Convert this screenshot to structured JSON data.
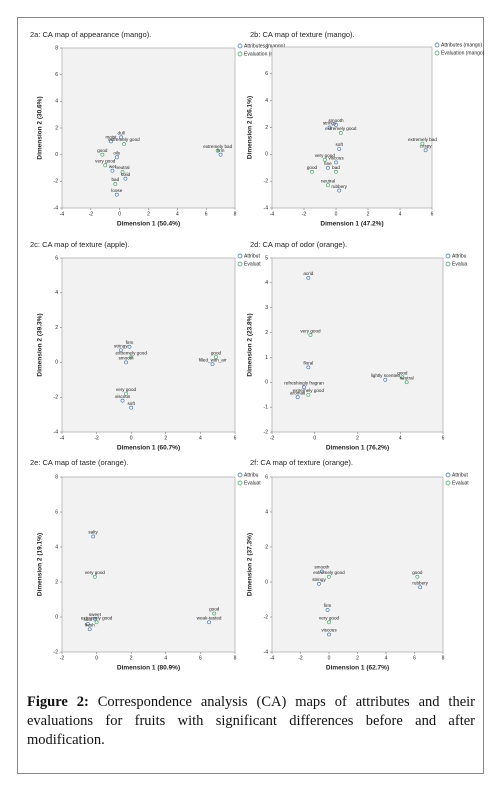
{
  "chart_data": [
    {
      "type": "scatter",
      "title": "2a: CA map of appearance (mango).",
      "xlabel": "Dimension 1 (50.4%)",
      "ylabel": "Dimension 2 (30.6%)",
      "xlim": [
        -4,
        8
      ],
      "xticks": [
        -4,
        -2,
        0,
        2,
        4,
        6,
        8
      ],
      "ylim": [
        -4,
        8
      ],
      "yticks": [
        -4,
        -2,
        0,
        2,
        4,
        6,
        8
      ],
      "series": [
        {
          "name": "Attributes (mango)",
          "color": "#3a6fb0",
          "labels": [
            "dull",
            "moist",
            "oily",
            "wet",
            "solid",
            "loose",
            "firm"
          ],
          "x": [
            0.1,
            -0.6,
            -0.2,
            -0.5,
            0.4,
            -0.2,
            7.0
          ],
          "values": [
            1.3,
            1.0,
            -0.2,
            -1.2,
            -1.8,
            -3.0,
            0.0
          ]
        },
        {
          "name": "Evaluation (mango)",
          "color": "#3aa060",
          "labels": [
            "extremely good",
            "good",
            "very good",
            "neutral",
            "bad",
            "extremely bad"
          ],
          "x": [
            0.3,
            -1.2,
            -1.0,
            0.2,
            -0.3,
            6.8
          ],
          "values": [
            0.8,
            0.0,
            -0.8,
            -1.3,
            -2.2,
            0.3
          ]
        }
      ]
    },
    {
      "type": "scatter",
      "title": "2b: CA map of texture (mango).",
      "xlabel": "Dimension 1 (47.2%)",
      "ylabel": "Dimension 2 (26.1%)",
      "xlim": [
        -4,
        6
      ],
      "xticks": [
        -4,
        -2,
        0,
        2,
        4,
        6
      ],
      "ylim": [
        -4,
        8
      ],
      "yticks": [
        -4,
        -2,
        0,
        2,
        4,
        6,
        8
      ],
      "series": [
        {
          "name": "Attributes (mango)",
          "color": "#3a6fb0",
          "labels": [
            "stringy",
            "smooth",
            "soft",
            "viscous",
            "fine",
            "rubbery",
            "crispy"
          ],
          "x": [
            -0.4,
            0.0,
            0.2,
            0.0,
            -0.5,
            0.2,
            5.6
          ],
          "values": [
            2.0,
            2.2,
            0.4,
            -0.6,
            -1.0,
            -2.7,
            0.3
          ]
        },
        {
          "name": "Evaluation (mango)",
          "color": "#3aa060",
          "labels": [
            "extremely good",
            "very good",
            "good",
            "bad",
            "neutral",
            "extremely bad"
          ],
          "x": [
            0.3,
            -0.7,
            -1.5,
            0.0,
            -0.5,
            5.4
          ],
          "values": [
            1.6,
            -0.4,
            -1.3,
            -1.3,
            -2.3,
            0.8
          ]
        }
      ]
    },
    {
      "type": "scatter",
      "title": "2c: CA map of texture (apple).",
      "xlabel": "Dimension 1 (60.7%)",
      "ylabel": "Dimension 2 (39.3%)",
      "xlim": [
        -4,
        6
      ],
      "xticks": [
        -4,
        -2,
        0,
        2,
        4,
        6
      ],
      "ylim": [
        -4,
        6
      ],
      "yticks": [
        -4,
        -2,
        0,
        2,
        4,
        6
      ],
      "series": [
        {
          "name": "Attribut",
          "color": "#3a6fb0",
          "labels": [
            "firm",
            "stringy",
            "smooth",
            "filled_with_air",
            "viscous",
            "soft"
          ],
          "x": [
            -0.1,
            -0.6,
            -0.3,
            4.7,
            -0.5,
            0.0
          ],
          "values": [
            0.9,
            0.7,
            0.0,
            -0.1,
            -2.2,
            -2.6
          ]
        },
        {
          "name": "Evaluat",
          "color": "#3aa060",
          "labels": [
            "extremely good",
            "good",
            "very good"
          ],
          "x": [
            0.0,
            4.9,
            -0.3
          ],
          "values": [
            0.3,
            0.3,
            -1.8
          ]
        }
      ]
    },
    {
      "type": "scatter",
      "title": "2d: CA map of odor (orange).",
      "xlabel": "Dimension 1 (76.2%)",
      "ylabel": "Dimension 2 (23.8%)",
      "xlim": [
        -2,
        6
      ],
      "xticks": [
        -2,
        0,
        2,
        4,
        6
      ],
      "ylim": [
        -2,
        5
      ],
      "yticks": [
        -2,
        -1,
        0,
        1,
        2,
        3,
        4,
        5
      ],
      "series": [
        {
          "name": "Attribu",
          "color": "#3a6fb0",
          "labels": [
            "acrid",
            "floral",
            "refreshingly fragran",
            "aromati",
            "lightly scented"
          ],
          "x": [
            -0.3,
            -0.3,
            -0.5,
            -0.8,
            3.3
          ],
          "values": [
            4.2,
            0.6,
            -0.2,
            -0.6,
            0.1
          ]
        },
        {
          "name": "Evalua",
          "color": "#3aa060",
          "labels": [
            "very good",
            "extremely good",
            "good",
            "neutral"
          ],
          "x": [
            -0.2,
            -0.3,
            4.1,
            4.3
          ],
          "values": [
            1.9,
            -0.5,
            0.2,
            0.0
          ]
        }
      ]
    },
    {
      "type": "scatter",
      "title": "2e: CA map of taste (orange).",
      "xlabel": "Dimension 1 (80.9%)",
      "ylabel": "Dimension 2 (19.1%)",
      "xlim": [
        -2,
        8
      ],
      "xticks": [
        -2,
        0,
        2,
        4,
        6,
        8
      ],
      "ylim": [
        -2,
        8
      ],
      "yticks": [
        -2,
        0,
        2,
        4,
        6,
        8
      ],
      "series": [
        {
          "name": "Attribu",
          "color": "#3a6fb0",
          "labels": [
            "salty",
            "sweet",
            "sour",
            "fresh",
            "weak-tasted"
          ],
          "x": [
            -0.2,
            -0.1,
            -0.5,
            -0.4,
            6.5
          ],
          "values": [
            4.6,
            -0.1,
            -0.4,
            -0.7,
            -0.3
          ]
        },
        {
          "name": "Evaluat",
          "color": "#3aa060",
          "labels": [
            "very good",
            "extremely good",
            "good"
          ],
          "x": [
            -0.1,
            0.0,
            6.8
          ],
          "values": [
            2.3,
            -0.3,
            0.2
          ]
        }
      ]
    },
    {
      "type": "scatter",
      "title": "2f: CA map of texture (orange).",
      "xlabel": "Dimension 1 (62.7%)",
      "ylabel": "Dimension 2 (37.3%)",
      "xlim": [
        -4,
        8
      ],
      "xticks": [
        -4,
        -2,
        0,
        2,
        4,
        6,
        8
      ],
      "ylim": [
        -4,
        6
      ],
      "yticks": [
        -4,
        -2,
        0,
        2,
        4,
        6
      ],
      "series": [
        {
          "name": "Attribut",
          "color": "#3a6fb0",
          "labels": [
            "smooth",
            "stringy",
            "rubbery",
            "firm",
            "viscous"
          ],
          "x": [
            -0.5,
            -0.7,
            6.4,
            -0.1,
            0.0
          ],
          "values": [
            0.6,
            -0.1,
            -0.3,
            -1.6,
            -3.0
          ]
        },
        {
          "name": "Evaluat",
          "color": "#3aa060",
          "labels": [
            "extremely good",
            "good",
            "very good"
          ],
          "x": [
            0.0,
            6.2,
            0.0
          ],
          "values": [
            0.3,
            0.3,
            -2.3
          ]
        }
      ]
    }
  ],
  "caption": {
    "label": "Figure 2:",
    "text": "Correspondence analysis (CA) maps of attributes and their evaluations for fruits with significant differences before and after modification."
  }
}
